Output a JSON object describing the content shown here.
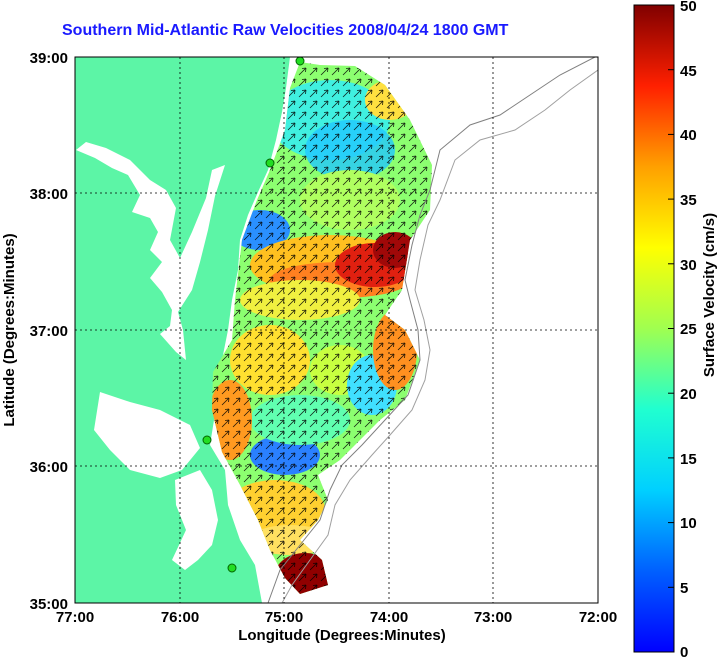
{
  "title": "Southern Mid-Atlantic Raw Velocities 2008/04/24 1800 GMT",
  "map": {
    "xlabel": "Longitude (Degrees:Minutes)",
    "ylabel": "Latitude (Degrees:Minutes)",
    "x_ticks": [
      "77:00",
      "76:00",
      "75:00",
      "74:00",
      "73:00",
      "72:00"
    ],
    "y_ticks": [
      "39:00",
      "38:00",
      "37:00",
      "36:00",
      "35:00"
    ],
    "lon_range": [
      -77,
      -72
    ],
    "lat_range": [
      35,
      39
    ],
    "grid": true,
    "colors": {
      "land": "#5cf5a6",
      "ocean": "#ffffff",
      "arrows": "#000000",
      "stations": "#22dd22"
    }
  },
  "colorbar": {
    "label": "Surface Velocity (cm/s)",
    "ticks": [
      "50",
      "45",
      "40",
      "35",
      "30",
      "25",
      "20",
      "15",
      "10",
      "5",
      "0"
    ],
    "range": [
      0,
      50
    ],
    "colormap": "jet"
  }
}
